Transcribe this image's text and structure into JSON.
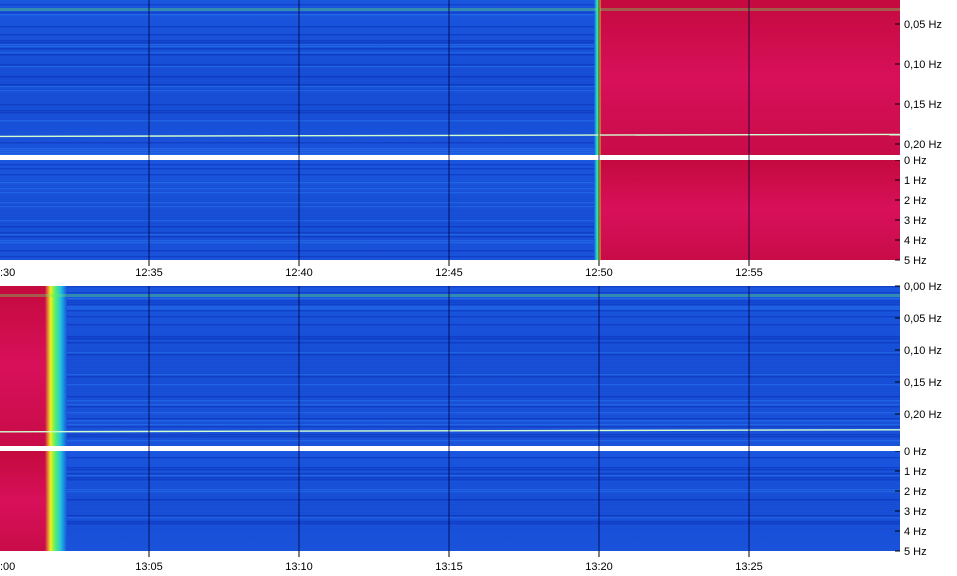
{
  "chart_data": [
    {
      "type": "heatmap",
      "title": "",
      "x_tick_labels": [
        ":30",
        "12:35",
        "12:40",
        "12:45",
        "12:50",
        "12:55"
      ],
      "x_range": [
        "12:30",
        "13:00"
      ],
      "low_band": {
        "y_tick_labels": [
          "0,05 Hz",
          "0,10 Hz",
          "0,15 Hz",
          "0,20 Hz"
        ],
        "y_range_hz": [
          0.0,
          0.25
        ],
        "hot_region": {
          "from": "12:50",
          "to": "13:00"
        }
      },
      "high_band": {
        "y_tick_labels": [
          "0 Hz",
          "1 Hz",
          "2 Hz",
          "3 Hz",
          "4 Hz",
          "5 Hz"
        ],
        "y_range_hz": [
          0,
          5
        ],
        "hot_region": {
          "from": "12:50",
          "to": "13:00"
        }
      },
      "trace_line_hz": 0.22
    },
    {
      "type": "heatmap",
      "title": "",
      "x_tick_labels": [
        ":00",
        "13:05",
        "13:10",
        "13:15",
        "13:20",
        "13:25"
      ],
      "x_range": [
        "13:00",
        "13:30"
      ],
      "low_band": {
        "y_tick_labels": [
          "0,00 Hz",
          "0,05 Hz",
          "0,10 Hz",
          "0,15 Hz",
          "0,20 Hz"
        ],
        "y_range_hz": [
          0.0,
          0.225
        ],
        "hot_region": {
          "from": "13:00",
          "to": "13:01:30"
        }
      },
      "high_band": {
        "y_tick_labels": [
          "0 Hz",
          "1 Hz",
          "2 Hz",
          "3 Hz",
          "4 Hz",
          "5 Hz"
        ],
        "y_range_hz": [
          0,
          5
        ],
        "hot_region": {
          "from": "13:00",
          "to": "13:01:30"
        }
      },
      "trace_line_hz": 0.205
    }
  ],
  "colors": {
    "background_blue": "#1a4fd6",
    "deep_blue": "#0a2fb0",
    "cyan": "#20c8e0",
    "green": "#60f060",
    "yellow": "#f0f020",
    "red_hot": "#d0104a",
    "dark_red": "#a00830",
    "grid": "#000040"
  }
}
